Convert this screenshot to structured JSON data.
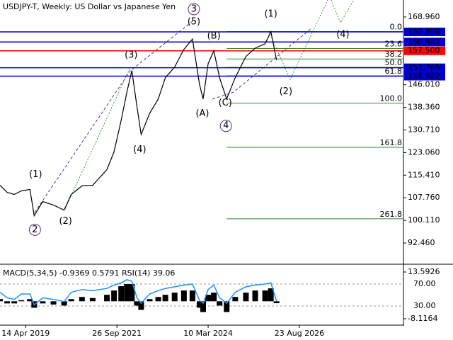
{
  "chart_data": [
    {
      "type": "line",
      "title": "USDJPY-T, Weekly:  US Dollar vs Japanese Yen",
      "color": "#000000",
      "x": [
        "2018-08-05",
        "2018-10-14",
        "2018-12-23",
        "2019-03-03",
        "2019-05-26",
        "2019-07-07",
        "2019-09-29",
        "2020-01-12",
        "2020-04-26",
        "2020-07-05",
        "2020-10-18",
        "2021-01-31",
        "2021-06-20",
        "2021-08-29",
        "2021-11-07",
        "2022-01-02",
        "2022-02-20",
        "2022-04-10",
        "2022-05-22",
        "2022-08-14",
        "2022-11-06",
        "2023-01-15",
        "2023-04-16",
        "2023-07-16",
        "2023-10-08",
        "2023-12-17",
        "2024-01-21",
        "2024-03-10",
        "2024-05-05",
        "2024-06-30",
        "2024-09-08",
        "2024-12-01",
        "2025-03-16",
        "2025-06-15",
        "2025-09-21",
        "2025-11-16",
        "2026-01-11"
      ],
      "values": [
        112.0,
        109.6,
        108.9,
        110.1,
        110.6,
        101.7,
        106.5,
        105.3,
        103.6,
        108.9,
        111.8,
        112.0,
        117.3,
        123.3,
        134.0,
        143.6,
        150.8,
        138.8,
        129.2,
        136.4,
        141.2,
        148.4,
        152.0,
        158.0,
        161.5,
        146.0,
        141.2,
        153.2,
        157.5,
        148.4,
        141.2,
        148.4,
        155.6,
        158.4,
        159.9,
        164.0,
        154.4
      ],
      "xlim": [
        "2018-08-05",
        "2029-06-10"
      ],
      "ylim": [
        85.52,
        174.7
      ],
      "yticks": [
        {
          "value": 168.96,
          "label": "168.960"
        },
        {
          "value": 146.01,
          "label": "146.010"
        },
        {
          "value": 138.36,
          "label": "138.360"
        },
        {
          "value": 130.71,
          "label": "130.710"
        },
        {
          "value": 123.06,
          "label": "123.060"
        },
        {
          "value": 115.41,
          "label": "115.410"
        },
        {
          "value": 107.76,
          "label": "107.760"
        },
        {
          "value": 100.11,
          "label": "100.110"
        },
        {
          "value": 92.46,
          "label": "92.460"
        }
      ],
      "levels": [
        {
          "value": 163.9,
          "label": "163.900",
          "color": "#0000cd"
        },
        {
          "value": 160.482,
          "label": "160.482",
          "color": "#0000cd"
        },
        {
          "value": 157.5,
          "label": "157.500",
          "color": "#ff0000"
        },
        {
          "value": 151.765,
          "label": "151.765",
          "color": "#0000cd"
        },
        {
          "value": 148.922,
          "label": "148.922",
          "color": "#0000cd"
        }
      ],
      "fibonacci": {
        "start": 164.0,
        "end": 139.8,
        "from": "2024-09-08",
        "color": "#2e8b2e",
        "levels": [
          {
            "value": 0,
            "label": "0.0"
          },
          23.6,
          38.2,
          {
            "value": 50,
            "label": "50.0"
          },
          61.8,
          {
            "value": 100,
            "label": "100.0"
          },
          161.8,
          261.8
        ]
      },
      "annotations": [
        {
          "text": "(1)",
          "x": "2019-07-21",
          "y": 115.6,
          "color": "#3a9a3a"
        },
        {
          "text": "2",
          "x": "2019-07-14",
          "y": 96.95,
          "color": "#5b2a86",
          "circled": true
        },
        {
          "text": "(2)",
          "x": "2020-05-10",
          "y": 99.8,
          "color": "#3a9a3a"
        },
        {
          "text": "(3)",
          "x": "2022-02-13",
          "y": 156.0,
          "color": "#3a9a3a"
        },
        {
          "text": "(4)",
          "x": "2022-05-08",
          "y": 124.0,
          "color": "#3a9a3a"
        },
        {
          "text": "(5)",
          "x": "2023-10-22",
          "y": 167.3,
          "color": "#3a9a3a"
        },
        {
          "text": "3",
          "x": "2023-10-22",
          "y": 171.6,
          "color": "#5b2a86",
          "circled": true
        },
        {
          "text": "(B)",
          "x": "2024-05-05",
          "y": 162.5,
          "color": "#3a9a3a"
        },
        {
          "text": "(A)",
          "x": "2024-01-14",
          "y": 136.2,
          "color": "#3a9a3a"
        },
        {
          "text": "(C)",
          "x": "2024-08-25",
          "y": 139.8,
          "color": "#3a9a3a"
        },
        {
          "text": "4",
          "x": "2024-09-01",
          "y": 132.1,
          "color": "#5b2a86",
          "circled": true
        },
        {
          "text": "(1)",
          "x": "2025-11-16",
          "y": 169.9,
          "color": "#3a9a3a"
        },
        {
          "text": "(4)",
          "x": "2027-10-24",
          "y": 163.0,
          "color": "#3a9a3a"
        },
        {
          "text": "(2)",
          "x": "2026-04-12",
          "y": 143.6,
          "color": "#3a9a3a"
        }
      ]
    },
    {
      "type": "bar",
      "title": "MACD(5,34,5) -0.9369 0.5791 RSI(14) 39.06",
      "x": [
        "2018-08-05",
        "2018-10-14",
        "2018-12-23",
        "2019-03-03",
        "2019-05-26",
        "2019-07-07",
        "2019-09-29",
        "2020-01-12",
        "2020-04-26",
        "2020-07-05",
        "2020-10-18",
        "2021-01-31",
        "2021-06-20",
        "2021-08-29",
        "2021-11-07",
        "2022-01-02",
        "2022-02-20",
        "2022-04-10",
        "2022-05-22",
        "2022-08-14",
        "2022-11-06",
        "2023-01-15",
        "2023-04-16",
        "2023-07-16",
        "2023-10-08",
        "2023-12-17",
        "2024-01-21",
        "2024-03-10",
        "2024-05-05",
        "2024-06-30",
        "2024-09-08",
        "2024-12-01",
        "2025-03-16",
        "2025-06-15",
        "2025-09-21",
        "2025-11-16",
        "2026-01-11"
      ],
      "series": [
        {
          "color": "#000000",
          "values": [
            1,
            -1,
            -1,
            0.5,
            1,
            -3,
            -1,
            -1.5,
            -2,
            1,
            2,
            1.5,
            3,
            5,
            7,
            8,
            8,
            -2,
            -4,
            1,
            2,
            3,
            4,
            5,
            5,
            -3,
            -5,
            3,
            4,
            -2,
            -5,
            2,
            4,
            5,
            5,
            6,
            -0.9
          ]
        },
        {
          "color": "#1e90ff",
          "axis": "y2",
          "type": "line",
          "values": [
            55,
            45,
            42,
            52,
            52,
            32,
            45,
            42,
            38,
            55,
            60,
            58,
            62,
            68,
            72,
            78,
            75,
            45,
            35,
            52,
            58,
            62,
            65,
            68,
            70,
            40,
            35,
            60,
            68,
            45,
            35,
            55,
            65,
            68,
            70,
            72,
            39
          ]
        }
      ],
      "xlim": [
        "2018-08-05",
        "2029-06-10"
      ],
      "xticks": [
        {
          "value": "2019-04-14",
          "label": "14 Apr 2019"
        },
        {
          "value": "2021-09-26",
          "label": "26 Sep 2021"
        },
        {
          "value": "2024-03-10",
          "label": "10 Mar 2024"
        },
        {
          "value": "2026-08-23",
          "label": "23 Aug 2026"
        }
      ],
      "ylim": [
        -10.75,
        16.88
      ],
      "yticks": [
        13.5926,
        -8.1164
      ],
      "y2lim": [
        -3.5,
        104.8
      ],
      "y2ticks": [
        {
          "value": 70,
          "label": "70.00"
        },
        {
          "value": 30,
          "label": "30.00"
        }
      ]
    }
  ]
}
